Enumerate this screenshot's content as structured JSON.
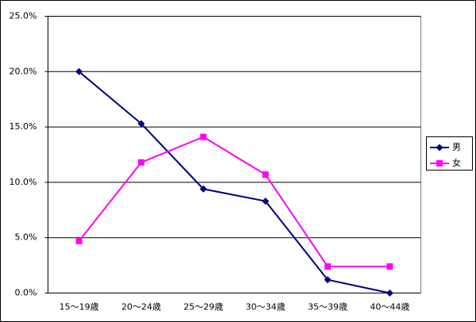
{
  "chart_data": {
    "type": "line",
    "categories": [
      "15～19歳",
      "20～24歳",
      "25～29歳",
      "30～34歳",
      "35～39歳",
      "40～44歳"
    ],
    "series": [
      {
        "name": "男",
        "color": "#000080",
        "marker": "diamond",
        "values": [
          20.0,
          15.3,
          9.4,
          8.3,
          1.2,
          0.0
        ]
      },
      {
        "name": "女",
        "color": "#ff00ff",
        "marker": "square",
        "values": [
          4.7,
          11.8,
          14.1,
          10.7,
          2.4,
          2.4
        ]
      }
    ],
    "ylim": [
      0,
      25
    ],
    "yticks": [
      {
        "value": 0,
        "label": "0.0%"
      },
      {
        "value": 5,
        "label": "5.0%"
      },
      {
        "value": 10,
        "label": "10.0%"
      },
      {
        "value": 15,
        "label": "15.0%"
      },
      {
        "value": 20,
        "label": "20.0%"
      },
      {
        "value": 25,
        "label": "25.0%"
      }
    ],
    "grid": true,
    "legend": "right"
  }
}
